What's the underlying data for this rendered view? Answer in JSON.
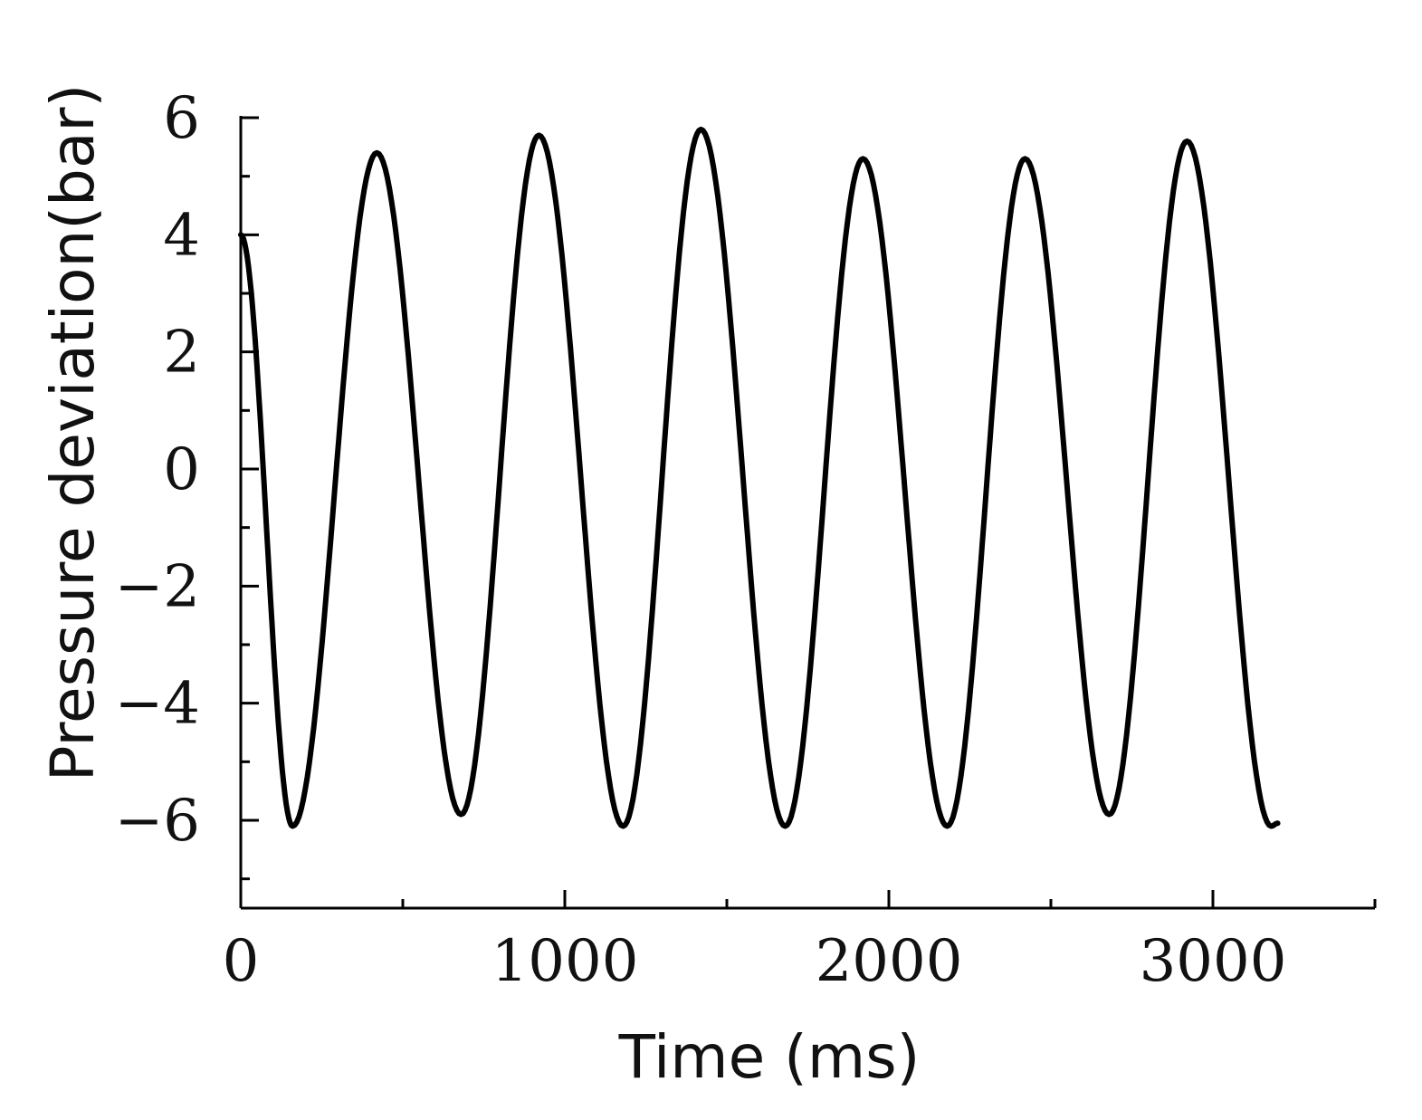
{
  "chart_data": {
    "type": "line",
    "title": "",
    "xlabel": "Time (ms)",
    "ylabel": "Pressure deviation(bar)",
    "xlim": [
      0,
      3500
    ],
    "ylim": [
      -7.5,
      6
    ],
    "x_ticks_major": [
      0,
      1000,
      2000,
      3000
    ],
    "x_ticks_minor": [
      500,
      1500,
      2500,
      3500
    ],
    "y_ticks_major": [
      -6,
      -4,
      -2,
      0,
      2,
      4,
      6
    ],
    "y_ticks_minor": [
      -7,
      -5,
      -3,
      -1,
      1,
      3,
      5
    ],
    "y_tick_labels": [
      "−6",
      "−4",
      "−2",
      "0",
      "2",
      "4",
      "6"
    ],
    "x_tick_labels": [
      "0",
      "1000",
      "2000",
      "3000"
    ],
    "grid": false,
    "series": [
      {
        "color": "#000000",
        "x": [
          0,
          160,
          420,
          680,
          920,
          1180,
          1420,
          1680,
          1920,
          2180,
          2420,
          2680,
          2920,
          3180,
          3200
        ],
        "y": [
          4.0,
          -6.1,
          5.4,
          -5.9,
          5.7,
          -6.1,
          5.8,
          -6.1,
          5.3,
          -6.1,
          5.3,
          -5.9,
          5.6,
          -6.1,
          -6.05
        ]
      }
    ]
  }
}
